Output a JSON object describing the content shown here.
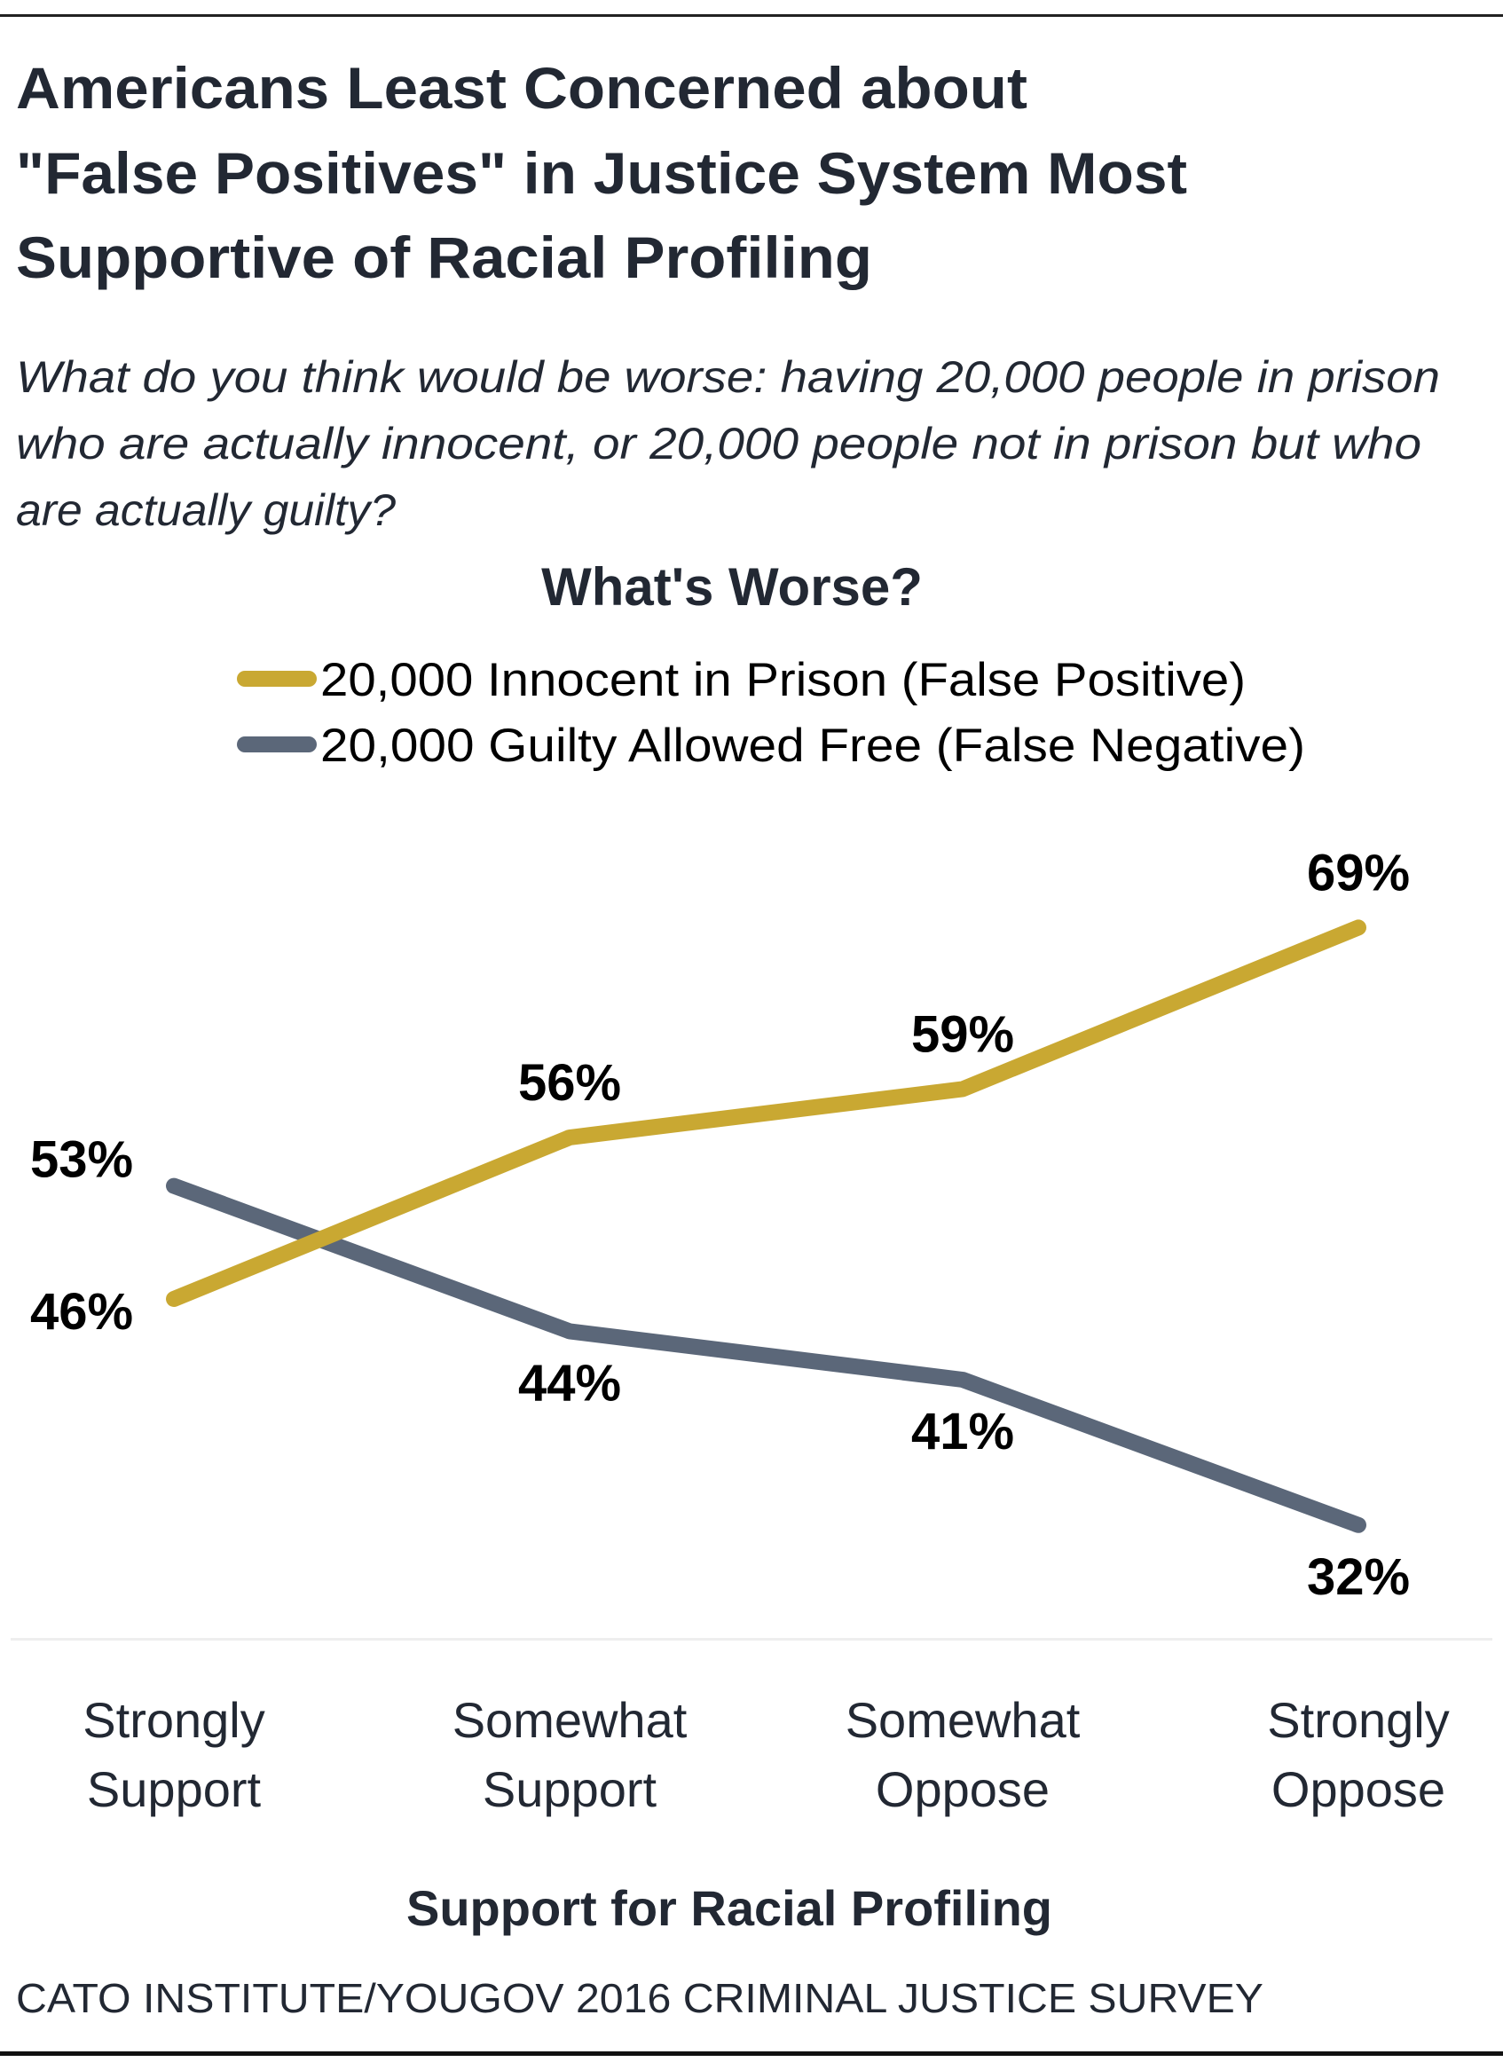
{
  "title_lines": [
    "Americans Least Concerned about",
    "\"False Positives\" in Justice System Most",
    "Supportive of Racial Profiling"
  ],
  "subtitle_lines": [
    "What do you think would be worse: having 20,000 people in prison",
    "who are actually innocent, or 20,000 people not in prison but who",
    "are actually guilty?"
  ],
  "source": "CATO INSTITUTE/YOUGOV 2016 CRIMINAL JUSTICE SURVEY",
  "chart_data": {
    "type": "line",
    "title": "What's Worse?",
    "xlabel": "Support for Racial Profiling",
    "ylabel": "",
    "categories": [
      "Strongly Support",
      "Somewhat Support",
      "Somewhat Oppose",
      "Strongly Oppose"
    ],
    "category_lines": [
      [
        "Strongly",
        "Support"
      ],
      [
        "Somewhat",
        "Support"
      ],
      [
        "Somewhat",
        "Oppose"
      ],
      [
        "Strongly",
        "Oppose"
      ]
    ],
    "series": [
      {
        "name": "20,000 Innocent in Prison (False Positive)",
        "values": [
          46,
          56,
          59,
          69
        ],
        "labels": [
          "46%",
          "56%",
          "59%",
          "69%"
        ],
        "color": "#C9A832"
      },
      {
        "name": "20,000 Guilty Allowed Free (False Negative)",
        "values": [
          53,
          44,
          41,
          32
        ],
        "labels": [
          "53%",
          "44%",
          "41%",
          "32%"
        ],
        "color": "#5B6779"
      }
    ],
    "unit": "%",
    "grid": false,
    "legend_position": "top"
  }
}
